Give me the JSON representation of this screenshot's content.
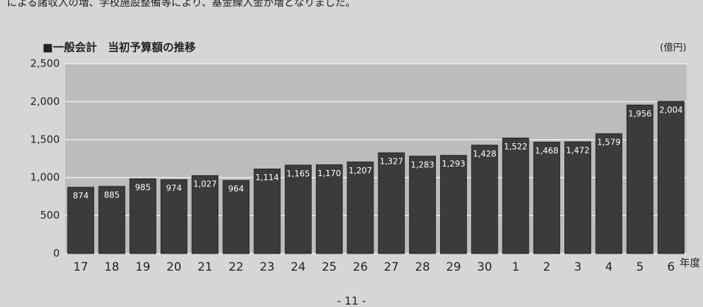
{
  "header_text": "による諸収入の増、学校施設整備等により、基金繰入金が増となりました。",
  "page_number": "- 11 -",
  "chart_data": {
    "type": "bar",
    "title": "■一般会計　当初予算額の推移",
    "unit": "(億円)",
    "x_label": "年度",
    "categories": [
      "17",
      "18",
      "19",
      "20",
      "21",
      "22",
      "23",
      "24",
      "25",
      "26",
      "27",
      "28",
      "29",
      "30",
      "1",
      "2",
      "3",
      "4",
      "5",
      "6"
    ],
    "values": [
      874,
      885,
      985,
      974,
      1027,
      964,
      1114,
      1165,
      1170,
      1207,
      1327,
      1283,
      1293,
      1428,
      1522,
      1468,
      1472,
      1579,
      1956,
      2004
    ],
    "value_labels": [
      "874",
      "885",
      "985",
      "974",
      "1,027",
      "964",
      "1,114",
      "1,165",
      "1,170",
      "1,207",
      "1,327",
      "1,283",
      "1,293",
      "1,428",
      "1,522",
      "1,468",
      "1,472",
      "1,579",
      "1,956",
      "2,004"
    ],
    "color": "#3b3b3b",
    "ylim": [
      0,
      2500
    ],
    "yticks": [
      0,
      500,
      {
        "value": 1000,
        "label": "1,000"
      },
      {
        "value": 1500,
        "label": "1,500"
      },
      {
        "value": 2000,
        "label": "2,000"
      },
      {
        "value": 2500,
        "label": "2,500"
      }
    ],
    "grid": true
  }
}
